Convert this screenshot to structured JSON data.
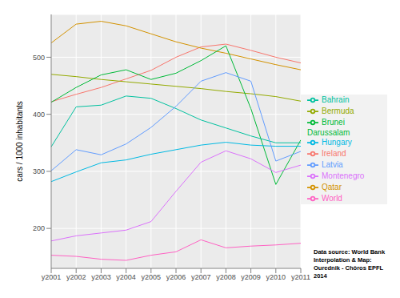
{
  "chart_data": {
    "type": "line",
    "y_label": "cars / 1000 inhabitants",
    "categories": [
      "y2001",
      "y2002",
      "y2003",
      "y2004",
      "y2005",
      "y2006",
      "y2007",
      "y2008",
      "y2009",
      "y2010",
      "y2011"
    ],
    "series": [
      {
        "name": "Ireland",
        "color": "#F8766D",
        "values": [
          422,
          435,
          447,
          462,
          477,
          500,
          518,
          523,
          512,
          500,
          490
        ]
      },
      {
        "name": "Qatar",
        "color": "#D39200",
        "values": [
          525,
          558,
          563,
          555,
          541,
          527,
          516,
          507,
          497,
          487,
          478
        ]
      },
      {
        "name": "Bermuda",
        "color": "#93AA00",
        "values": [
          470,
          466,
          461,
          457,
          453,
          449,
          445,
          440,
          436,
          431,
          423
        ]
      },
      {
        "name": "Brunei Darussalam",
        "color": "#00BA38",
        "values": [
          421,
          447,
          469,
          478,
          461,
          472,
          494,
          520,
          410,
          277,
          355
        ]
      },
      {
        "name": "Bahrain",
        "color": "#00C19F",
        "values": [
          343,
          413,
          416,
          432,
          428,
          410,
          390,
          376,
          362,
          350,
          350
        ]
      },
      {
        "name": "Hungary",
        "color": "#00B9E3",
        "values": [
          282,
          299,
          315,
          320,
          330,
          338,
          346,
          351,
          346,
          344,
          344
        ]
      },
      {
        "name": "Latvia",
        "color": "#619CFF",
        "values": [
          301,
          338,
          329,
          348,
          377,
          414,
          458,
          473,
          458,
          318,
          335
        ]
      },
      {
        "name": "Montenegro",
        "color": "#DB72FB",
        "values": [
          178,
          187,
          192,
          197,
          212,
          265,
          316,
          336,
          322,
          298,
          311
        ]
      },
      {
        "name": "World",
        "color": "#FF61C3",
        "values": [
          153,
          151,
          146,
          144,
          153,
          159,
          180,
          166,
          169,
          171,
          174
        ]
      }
    ],
    "ylim": [
      130,
      575
    ],
    "yticks": [
      200,
      300,
      400,
      500
    ],
    "grid": true,
    "legend": "right",
    "annotations": [
      "Data source: World Bank",
      "Interpolation & Map:",
      "Ourednik - Chôros EPFL",
      "2014"
    ]
  }
}
